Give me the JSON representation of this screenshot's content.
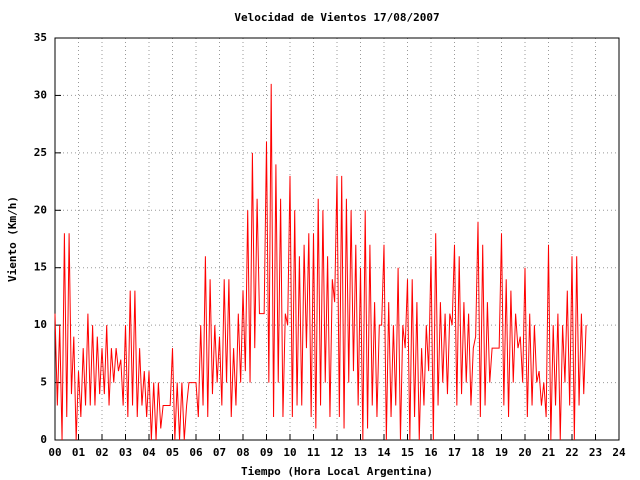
{
  "chart_data": {
    "type": "line",
    "title": "Velocidad de Vientos 17/08/2007",
    "x_label": "Tiempo (Hora Local Argentina)",
    "y_label": "Viento (Km/h)",
    "xlim": [
      0,
      24
    ],
    "ylim": [
      0,
      35
    ],
    "xticks": [
      {
        "value": 0,
        "label": "00"
      },
      {
        "value": 1,
        "label": "01"
      },
      {
        "value": 2,
        "label": "02"
      },
      {
        "value": 3,
        "label": "03"
      },
      {
        "value": 4,
        "label": "04"
      },
      {
        "value": 5,
        "label": "05"
      },
      {
        "value": 6,
        "label": "06"
      },
      {
        "value": 7,
        "label": "07"
      },
      {
        "value": 8,
        "label": "08"
      },
      {
        "value": 9,
        "label": "09"
      },
      {
        "value": 10,
        "label": "10"
      },
      {
        "value": 11,
        "label": "11"
      },
      {
        "value": 12,
        "label": "12"
      },
      {
        "value": 13,
        "label": "13"
      },
      {
        "value": 14,
        "label": "14"
      },
      {
        "value": 15,
        "label": "15"
      },
      {
        "value": 16,
        "label": "16"
      },
      {
        "value": 17,
        "label": "17"
      },
      {
        "value": 18,
        "label": "18"
      },
      {
        "value": 19,
        "label": "19"
      },
      {
        "value": 20,
        "label": "20"
      },
      {
        "value": 21,
        "label": "21"
      },
      {
        "value": 22,
        "label": "22"
      },
      {
        "value": 23,
        "label": "23"
      },
      {
        "value": 24,
        "label": "24"
      }
    ],
    "yticks": [
      0,
      5,
      10,
      15,
      20,
      25,
      30,
      35
    ],
    "grid": true,
    "color": "#ff0000",
    "x": [
      0,
      0.1,
      0.2,
      0.3,
      0.4,
      0.5,
      0.6,
      0.7,
      0.8,
      0.9,
      1,
      1.1,
      1.2,
      1.3,
      1.4,
      1.5,
      1.6,
      1.7,
      1.8,
      1.9,
      2,
      2.1,
      2.2,
      2.3,
      2.4,
      2.5,
      2.6,
      2.7,
      2.8,
      2.9,
      3,
      3.1,
      3.2,
      3.3,
      3.4,
      3.5,
      3.6,
      3.7,
      3.8,
      3.9,
      4,
      4.1,
      4.2,
      4.3,
      4.4,
      4.5,
      4.6,
      4.7,
      4.8,
      4.9,
      5,
      5.1,
      5.2,
      5.3,
      5.4,
      5.5,
      5.6,
      5.7,
      5.8,
      5.9,
      6,
      6.1,
      6.2,
      6.3,
      6.4,
      6.5,
      6.6,
      6.7,
      6.8,
      6.9,
      7,
      7.1,
      7.2,
      7.3,
      7.4,
      7.5,
      7.6,
      7.7,
      7.8,
      7.9,
      8,
      8.1,
      8.2,
      8.3,
      8.4,
      8.5,
      8.6,
      8.7,
      8.8,
      8.9,
      9,
      9.1,
      9.2,
      9.3,
      9.4,
      9.5,
      9.6,
      9.7,
      9.8,
      9.9,
      10,
      10.1,
      10.2,
      10.3,
      10.4,
      10.5,
      10.6,
      10.7,
      10.8,
      10.9,
      11,
      11.1,
      11.2,
      11.3,
      11.4,
      11.5,
      11.6,
      11.7,
      11.8,
      11.9,
      12,
      12.1,
      12.2,
      12.3,
      12.4,
      12.5,
      12.6,
      12.7,
      12.8,
      12.9,
      13,
      13.1,
      13.2,
      13.3,
      13.4,
      13.5,
      13.6,
      13.7,
      13.8,
      13.9,
      14,
      14.1,
      14.2,
      14.3,
      14.4,
      14.5,
      14.6,
      14.7,
      14.8,
      14.9,
      15,
      15.1,
      15.2,
      15.3,
      15.4,
      15.5,
      15.6,
      15.7,
      15.8,
      15.9,
      16,
      16.1,
      16.2,
      16.3,
      16.4,
      16.5,
      16.6,
      16.7,
      16.8,
      16.9,
      17,
      17.1,
      17.2,
      17.3,
      17.4,
      17.5,
      17.6,
      17.7,
      17.8,
      17.9,
      18,
      18.1,
      18.2,
      18.3,
      18.4,
      18.5,
      18.6,
      18.7,
      18.8,
      18.9,
      19,
      19.1,
      19.2,
      19.3,
      19.4,
      19.5,
      19.6,
      19.7,
      19.8,
      19.9,
      20,
      20.1,
      20.2,
      20.3,
      20.4,
      20.5,
      20.6,
      20.7,
      20.8,
      20.9,
      21,
      21.1,
      21.2,
      21.3,
      21.4,
      21.5,
      21.6,
      21.7,
      21.8,
      21.9,
      22,
      22.1,
      22.2,
      22.3,
      22.4,
      22.5,
      22.6
    ],
    "values": [
      11,
      3,
      10,
      0,
      18,
      2,
      18,
      4,
      9,
      0,
      6,
      2,
      8,
      3,
      11,
      3,
      10,
      3,
      9,
      4,
      8,
      4,
      10,
      3,
      8,
      5,
      8,
      6,
      7,
      3,
      10,
      2,
      13,
      3,
      13,
      2,
      8,
      3,
      6,
      2,
      6,
      0,
      5,
      0,
      5,
      1,
      3,
      3,
      3,
      3,
      8,
      0,
      5,
      0,
      5,
      0,
      3,
      5,
      5,
      5,
      5,
      2,
      10,
      3,
      16,
      2,
      14,
      4,
      10,
      5,
      9,
      3,
      14,
      5,
      14,
      2,
      8,
      3,
      11,
      5,
      13,
      6,
      20,
      5,
      25,
      8,
      21,
      11,
      11,
      11,
      26,
      5,
      31,
      2,
      24,
      5,
      21,
      2,
      11,
      10,
      23,
      2,
      20,
      3,
      16,
      3,
      17,
      8,
      18,
      2,
      18,
      1,
      21,
      3,
      20,
      5,
      16,
      2,
      14,
      12,
      23,
      2,
      23,
      1,
      21,
      5,
      20,
      6,
      17,
      3,
      15,
      0,
      20,
      1,
      17,
      3,
      12,
      2,
      10,
      10,
      17,
      0,
      12,
      2,
      10,
      3,
      15,
      0,
      10,
      8,
      14,
      0,
      14,
      2,
      12,
      0,
      8,
      3,
      10,
      6,
      16,
      0,
      18,
      3,
      12,
      5,
      11,
      4,
      11,
      10,
      17,
      3,
      16,
      4,
      12,
      5,
      11,
      3,
      8,
      9,
      19,
      2,
      17,
      3,
      12,
      5,
      8,
      8,
      8,
      8,
      18,
      3,
      14,
      2,
      13,
      5,
      11,
      8,
      9,
      5,
      15,
      2,
      11,
      3,
      10,
      5,
      6,
      3,
      5,
      2,
      17,
      0,
      10,
      3,
      11,
      0,
      10,
      5,
      13,
      3,
      16,
      0,
      16,
      3,
      11,
      4,
      10
    ]
  }
}
